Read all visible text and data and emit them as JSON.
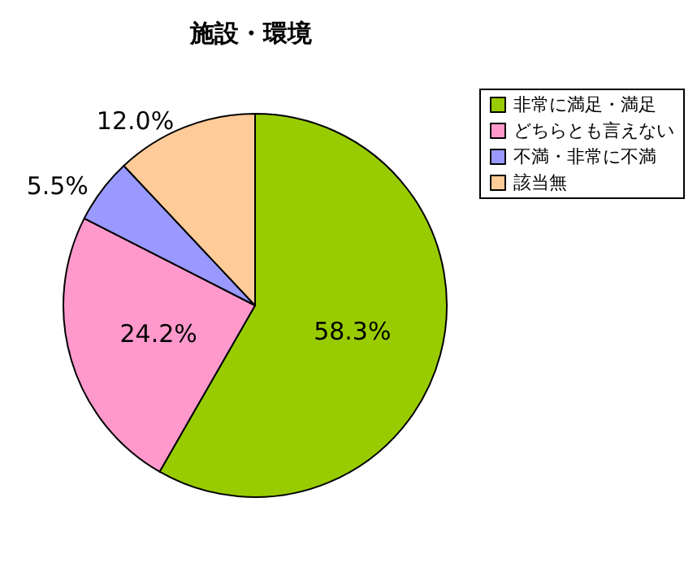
{
  "chart_data": {
    "type": "pie",
    "title": "施設・環境",
    "categories": [
      "非常に満足・満足",
      "どちらとも言えない",
      "不満・非常に不満",
      "該当無"
    ],
    "values": [
      58.3,
      24.2,
      5.5,
      12.0
    ],
    "colors": [
      "#99cc00",
      "#ff99cc",
      "#9999ff",
      "#ffcc99"
    ],
    "value_labels": [
      "58.3%",
      "24.2%",
      "5.5%",
      "12.0%"
    ],
    "legend": "right"
  }
}
